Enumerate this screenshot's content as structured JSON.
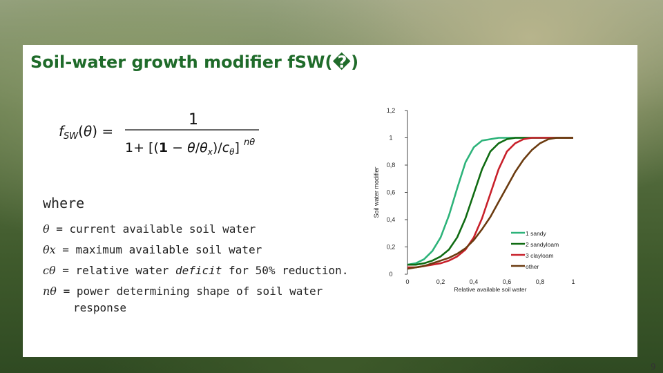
{
  "slide": {
    "title": "Soil-water growth modifier fSW(�)",
    "where_label": "where",
    "definitions": [
      {
        "symbol": "θ",
        "text": " = current available soil water"
      },
      {
        "symbol": "θx",
        "text": " = maximum available soil water"
      },
      {
        "symbol": "cθ",
        "text_pre": " = relative water ",
        "text_em": "deficit",
        "text_post": " for 50% reduction."
      },
      {
        "symbol": "nθ",
        "text": " = power determining shape of soil water",
        "text2": "response"
      }
    ],
    "page_number": "9",
    "formula": {
      "lhs": "fSW(θ) =",
      "numerator": "1",
      "denominator": "1+ [(1 − θ/θx)/cθ]",
      "exponent": "nθ"
    }
  },
  "chart_data": {
    "type": "line",
    "xlabel": "Relative available soil water",
    "ylabel": "Soil water modifier",
    "xlim": [
      0,
      1
    ],
    "ylim": [
      0,
      1.2
    ],
    "x_ticks": [
      "0",
      "0,2",
      "0,4",
      "0,6",
      "0,8",
      "1"
    ],
    "y_ticks": [
      "0",
      "0,2",
      "0,4",
      "0,6",
      "0,8",
      "1",
      "1,2"
    ],
    "legend_position": "right",
    "series": [
      {
        "name": "1 sandy",
        "color": "#2db37a",
        "c": 0.7,
        "n": 9,
        "x": [
          0,
          0.05,
          0.1,
          0.15,
          0.2,
          0.25,
          0.3,
          0.35,
          0.4,
          0.45,
          0.5,
          0.55,
          0.6,
          0.65,
          0.7,
          0.75,
          0.8,
          0.85,
          0.9,
          0.95,
          1
        ],
        "y": [
          0.07,
          0.08,
          0.11,
          0.17,
          0.27,
          0.43,
          0.63,
          0.82,
          0.93,
          0.98,
          0.99,
          1,
          1,
          1,
          1,
          1,
          1,
          1,
          1,
          1,
          1
        ]
      },
      {
        "name": "2 sandyloam",
        "color": "#0f6b12",
        "c": 0.6,
        "n": 9,
        "x": [
          0,
          0.05,
          0.1,
          0.15,
          0.2,
          0.25,
          0.3,
          0.35,
          0.4,
          0.45,
          0.5,
          0.55,
          0.6,
          0.65,
          0.7,
          0.75,
          0.8,
          0.85,
          0.9,
          0.95,
          1
        ],
        "y": [
          0.07,
          0.07,
          0.08,
          0.1,
          0.13,
          0.18,
          0.27,
          0.41,
          0.59,
          0.77,
          0.9,
          0.96,
          0.99,
          1,
          1,
          1,
          1,
          1,
          1,
          1,
          1
        ]
      },
      {
        "name": "3 clayloam",
        "color": "#c8202a",
        "c": 0.5,
        "n": 9,
        "x": [
          0,
          0.05,
          0.1,
          0.15,
          0.2,
          0.25,
          0.3,
          0.35,
          0.4,
          0.45,
          0.5,
          0.55,
          0.6,
          0.65,
          0.7,
          0.75,
          0.8,
          0.85,
          0.9,
          0.95,
          1
        ],
        "y": [
          0.05,
          0.05,
          0.06,
          0.07,
          0.08,
          0.1,
          0.13,
          0.18,
          0.27,
          0.41,
          0.59,
          0.77,
          0.9,
          0.96,
          0.99,
          1,
          1,
          1,
          1,
          1,
          1
        ]
      },
      {
        "name": "other",
        "color": "#6b3b10",
        "c": 0.4,
        "n": 5,
        "x": [
          0,
          0.05,
          0.1,
          0.15,
          0.2,
          0.25,
          0.3,
          0.35,
          0.4,
          0.45,
          0.5,
          0.55,
          0.6,
          0.65,
          0.7,
          0.75,
          0.8,
          0.85,
          0.9,
          0.95,
          1
        ],
        "y": [
          0.04,
          0.05,
          0.06,
          0.08,
          0.1,
          0.12,
          0.15,
          0.19,
          0.25,
          0.33,
          0.42,
          0.53,
          0.64,
          0.75,
          0.84,
          0.91,
          0.96,
          0.99,
          1,
          1,
          1
        ]
      }
    ]
  }
}
